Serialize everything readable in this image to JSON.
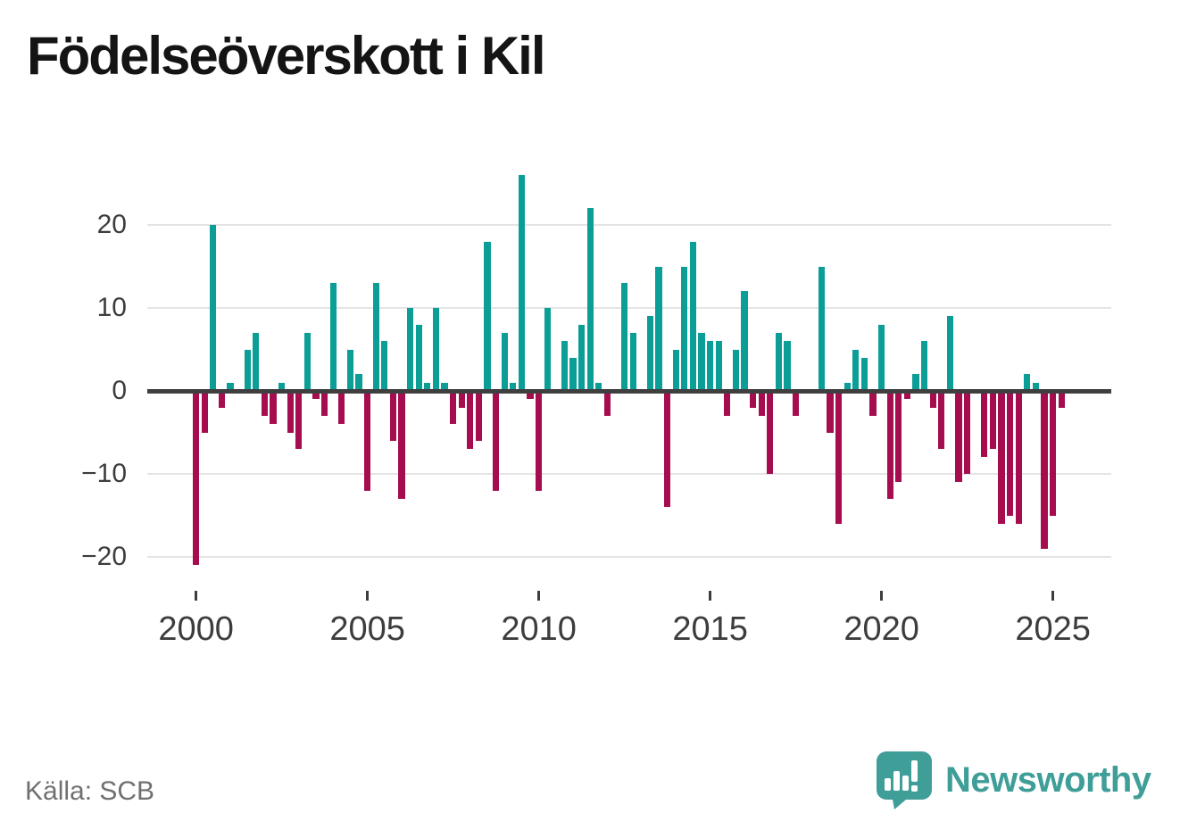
{
  "page": {
    "title": "Födelseöverskott i Kil",
    "source": "Källa: SCB",
    "brand": "Newsworthy"
  },
  "colors": {
    "positive_bar": "#0a9e96",
    "negative_bar": "#a50d4f",
    "zero_line": "#3f3f3f",
    "gridline": "#e4e4e4",
    "axis_text": "#3d3d3d",
    "source_text": "#707070",
    "brand_teal": "#3f9e98"
  },
  "chart_data": {
    "type": "bar",
    "title": "Födelseöverskott i Kil",
    "ylabel": "",
    "xlabel": "",
    "frequency": "quarterly",
    "start_period": "2000Q1",
    "end_period": "2025Q2",
    "ylim": [
      -22,
      27
    ],
    "grid": true,
    "yticks": [
      {
        "value": 20,
        "label": "20"
      },
      {
        "value": 10,
        "label": "10"
      },
      {
        "value": 0,
        "label": "0"
      },
      {
        "value": -10,
        "label": "−10"
      },
      {
        "value": -20,
        "label": "−20"
      }
    ],
    "xticks": [
      {
        "slot": 0,
        "label": "2000"
      },
      {
        "slot": 20,
        "label": "2005"
      },
      {
        "slot": 40,
        "label": "2010"
      },
      {
        "slot": 60,
        "label": "2015"
      },
      {
        "slot": 80,
        "label": "2020"
      },
      {
        "slot": 100,
        "label": "2025"
      }
    ],
    "values": [
      -21,
      -5,
      20,
      -2,
      1,
      0,
      5,
      7,
      -3,
      -4,
      1,
      -5,
      -7,
      7,
      -1,
      -3,
      13,
      -4,
      5,
      2,
      -12,
      13,
      6,
      -6,
      -13,
      10,
      8,
      1,
      10,
      1,
      -4,
      -2,
      -7,
      -6,
      18,
      -12,
      7,
      1,
      26,
      -1,
      -12,
      10,
      0,
      6,
      4,
      8,
      22,
      1,
      -3,
      0,
      13,
      7,
      0,
      9,
      15,
      -14,
      5,
      15,
      18,
      7,
      6,
      6,
      -3,
      5,
      12,
      -2,
      -3,
      -10,
      7,
      6,
      -3,
      0,
      0,
      15,
      -5,
      -16,
      1,
      5,
      4,
      -3,
      8,
      -13,
      -11,
      -1,
      2,
      6,
      -2,
      -7,
      9,
      -11,
      -10,
      0,
      -8,
      -7,
      -16,
      -15,
      -16,
      2,
      1,
      -19,
      -15,
      -2
    ]
  }
}
